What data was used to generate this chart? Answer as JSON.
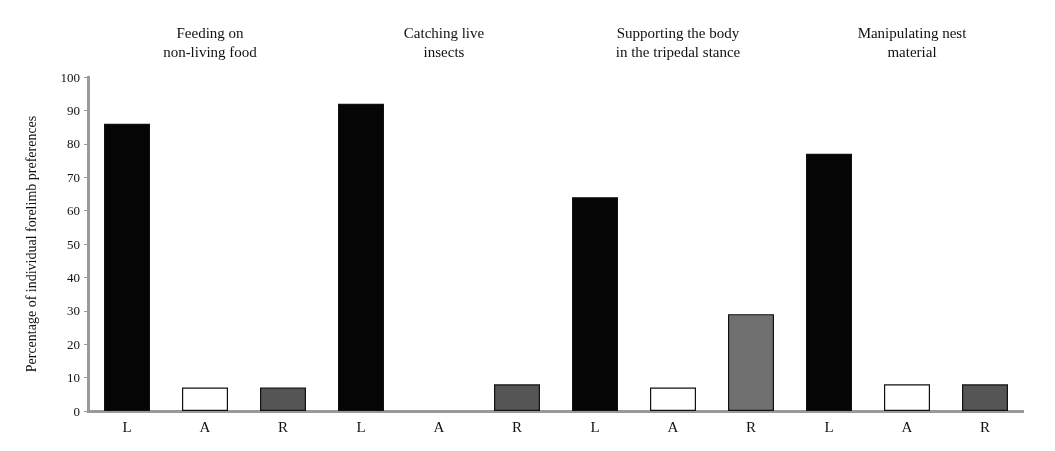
{
  "chart_data": [
    {
      "type": "bar",
      "title": "Feeding on\nnon-living food",
      "ylabel": "Percentage of individual forelimb preferences",
      "categories": [
        "L",
        "A",
        "R"
      ],
      "values": [
        86,
        7,
        7
      ],
      "colors": [
        "#050505",
        "#ffffff",
        "#555555"
      ],
      "ylim": [
        0,
        100
      ],
      "yticks": [
        0,
        10,
        20,
        30,
        40,
        50,
        60,
        70,
        80,
        90,
        100
      ]
    },
    {
      "type": "bar",
      "title": "Catching live\ninsects",
      "categories": [
        "L",
        "A",
        "R"
      ],
      "values": [
        92,
        0,
        8
      ],
      "colors": [
        "#050505",
        "#ffffff",
        "#555555"
      ],
      "ylim": [
        0,
        100
      ],
      "yticks": [
        0,
        10,
        20,
        30,
        40,
        50,
        60,
        70,
        80,
        90,
        100
      ],
      "tick_labels": "x"
    },
    {
      "type": "bar",
      "title": "Supporting the body\nin the tripedal stance",
      "categories": [
        "L",
        "A",
        "R"
      ],
      "values": [
        64,
        7,
        29
      ],
      "colors": [
        "#050505",
        "#ffffff",
        "#707070"
      ],
      "ylim": [
        0,
        100
      ],
      "yticks": [
        0,
        10,
        20,
        30,
        40,
        50,
        60,
        70,
        80,
        90,
        100
      ],
      "tick_labels": "x"
    },
    {
      "type": "bar",
      "title": "Manipulating nest\nmaterial",
      "categories": [
        "L",
        "A",
        "R"
      ],
      "values": [
        77,
        8,
        8
      ],
      "colors": [
        "#050505",
        "#ffffff",
        "#555555"
      ],
      "ylim": [
        0,
        100
      ],
      "yticks": [
        0,
        10,
        20,
        30,
        40,
        50,
        60,
        70,
        80,
        90,
        100
      ],
      "tick_labels": "x"
    }
  ]
}
